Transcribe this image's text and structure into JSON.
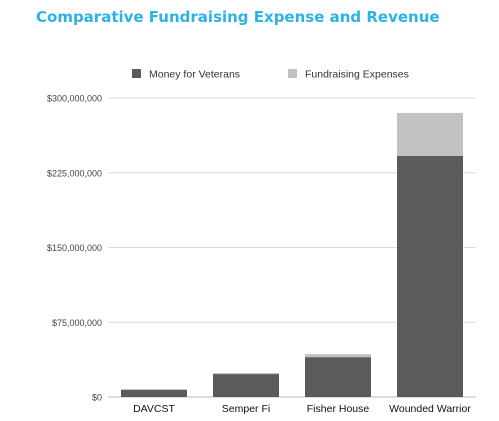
{
  "chart_data": {
    "type": "bar",
    "stacked": true,
    "title": "Comparative Fundraising Expense and Revenue",
    "xlabel": "",
    "ylabel": "",
    "categories": [
      "DAVCST",
      "Semper Fi",
      "Fisher House",
      "Wounded Warrior"
    ],
    "series": [
      {
        "name": "Money for Veterans",
        "color": "#5b5b5b",
        "values": [
          7000000,
          23000000,
          40000000,
          242000000
        ]
      },
      {
        "name": "Fundraising Expenses",
        "color": "#c2c2c2",
        "values": [
          1000000,
          1000000,
          3000000,
          43000000
        ]
      }
    ],
    "ylim": [
      0,
      300000000
    ],
    "yticks": [
      0,
      75000000,
      150000000,
      225000000,
      300000000
    ],
    "ytick_labels": [
      "$0",
      "$75,000,000",
      "$150,000,000",
      "$225,000,000",
      "$300,000,000"
    ],
    "grid": true,
    "legend_position": "top-center"
  }
}
